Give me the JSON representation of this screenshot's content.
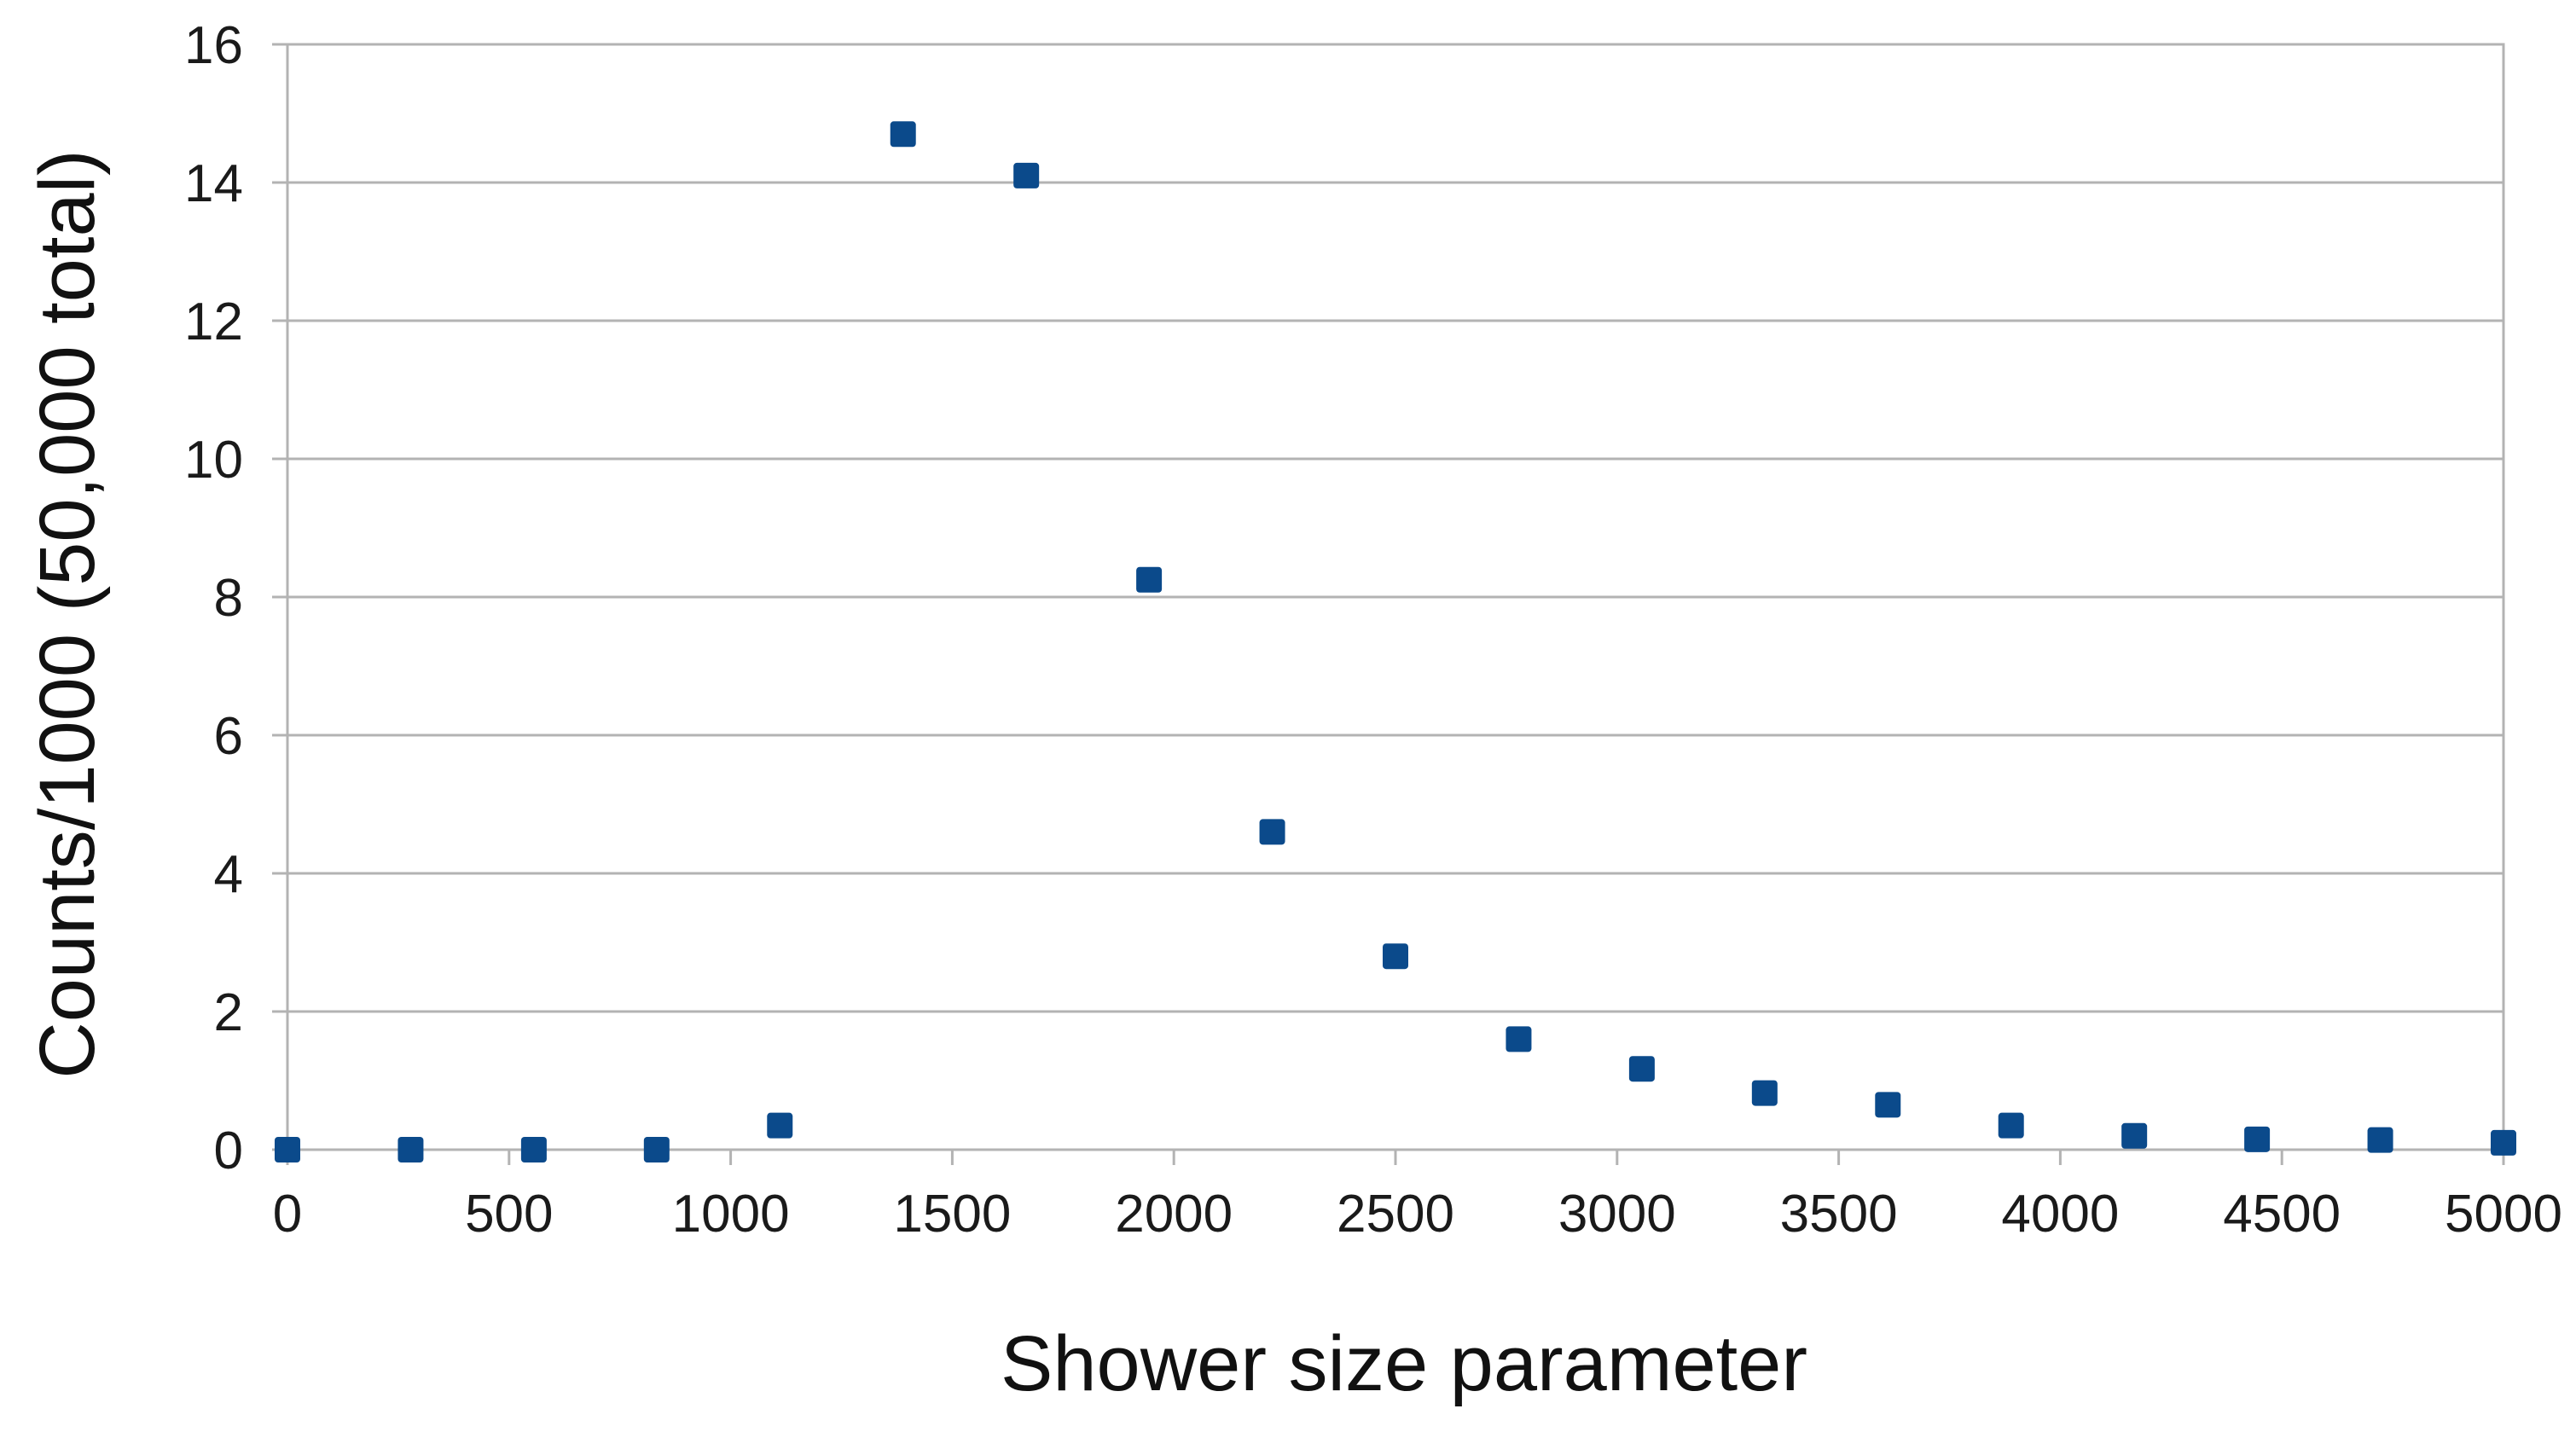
{
  "chart_data": {
    "type": "scatter",
    "title": "",
    "xlabel": "Shower size parameter",
    "ylabel": "Counts/1000 (50,000 total)",
    "xlim": [
      0,
      5000
    ],
    "ylim": [
      0,
      16
    ],
    "x_ticks": [
      0,
      500,
      1000,
      1500,
      2000,
      2500,
      3000,
      3500,
      4000,
      4500,
      5000
    ],
    "y_ticks": [
      0,
      2,
      4,
      6,
      8,
      10,
      12,
      14,
      16
    ],
    "grid": "horizontal",
    "legend": "none",
    "marker": "square",
    "color": "#0b4a8b",
    "series": [
      {
        "x": [
          0,
          278,
          556,
          833,
          1111,
          1389,
          1667,
          1944,
          2222,
          2500,
          2778,
          3056,
          3333,
          3611,
          3889,
          4167,
          4444,
          4722,
          5000
        ],
        "y": [
          0.0,
          0.0,
          0.0,
          0.0,
          0.35,
          14.7,
          14.1,
          8.25,
          4.6,
          2.8,
          1.6,
          1.17,
          0.82,
          0.65,
          0.35,
          0.2,
          0.15,
          0.14,
          0.1
        ]
      }
    ]
  }
}
